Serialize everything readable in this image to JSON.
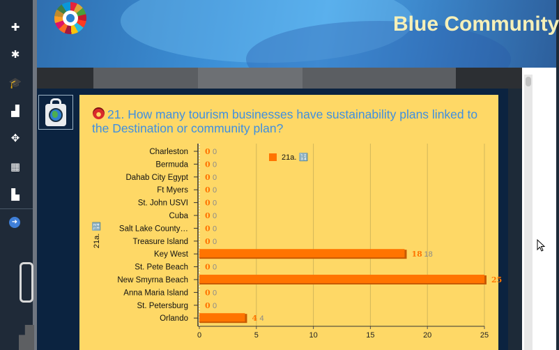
{
  "header": {
    "title": "Blue Community"
  },
  "sidebar": {
    "items": [
      {
        "icon": "plus-icon",
        "glyph": "✚"
      },
      {
        "icon": "asterisk-icon",
        "glyph": "✱"
      },
      {
        "icon": "graduation-cap-icon",
        "glyph": "🎓"
      },
      {
        "icon": "bar-chart-icon",
        "glyph": "▟"
      },
      {
        "icon": "move-icon",
        "glyph": "✥"
      },
      {
        "icon": "grid-icon",
        "glyph": "▦"
      },
      {
        "icon": "stacked-chart-icon",
        "glyph": "▙"
      },
      {
        "icon": "arrow-circle-right-icon",
        "glyph": "➜"
      }
    ]
  },
  "card": {
    "title": "21. How many tourism businesses have sustainability plans linked to the Destination or community plan?"
  },
  "chart_data": {
    "type": "bar",
    "orientation": "horizontal",
    "categories": [
      "Charleston",
      "Bermuda",
      "Dahab City Egypt",
      "Ft Myers",
      "St. John USVI",
      "Cuba",
      "Salt Lake County…",
      "Treasure Island",
      "Key West",
      "St. Pete Beach",
      "New Smyrna Beach",
      "Anna Maria Island",
      "St. Petersburg",
      "Orlando"
    ],
    "series": [
      {
        "name": "21a. 🔢",
        "values": [
          0,
          0,
          0,
          0,
          0,
          0,
          0,
          0,
          18,
          0,
          25,
          0,
          0,
          4
        ]
      }
    ],
    "ylabel": "21a. 🔢",
    "xlim": [
      0,
      25
    ],
    "xticks": [
      0,
      5,
      10,
      15,
      20,
      25
    ],
    "grid": true,
    "legend": "top-left",
    "colors": {
      "bar": "#ff7400",
      "bar_shadow": "#c85a00",
      "label_bold": "#ff7400",
      "label_plain": "#8a8a8a"
    }
  }
}
